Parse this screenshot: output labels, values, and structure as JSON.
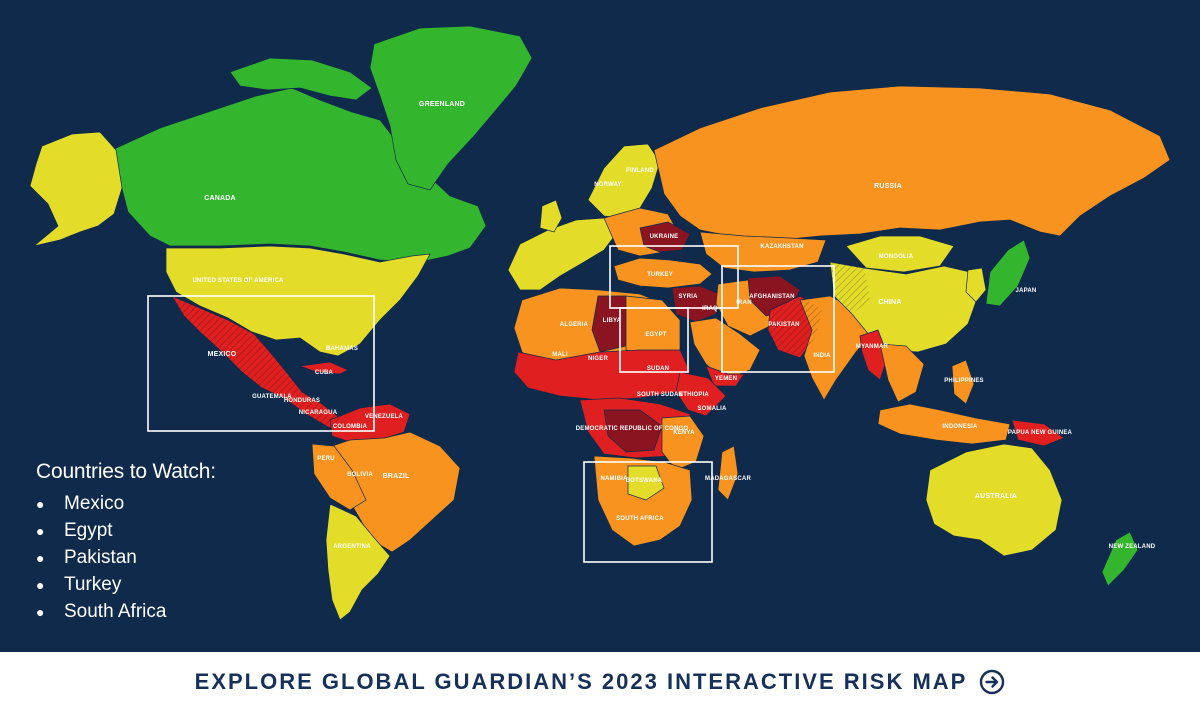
{
  "colors": {
    "ocean": "#0f2a4b",
    "low_risk": "#33b52e",
    "moderate_risk": "#e3dd2a",
    "elevated_risk": "#f7931e",
    "high_risk": "#e02020",
    "extreme_risk": "#8a1420",
    "box_outline": "#ffffff",
    "footer_bg": "#ffffff",
    "footer_text": "#16305a"
  },
  "map": {
    "country_labels": [
      "GREENLAND",
      "CANADA",
      "UNITED STATES OF AMERICA",
      "RUSSIA",
      "KAZAKHSTAN",
      "MONGOLIA",
      "CHINA",
      "JAPAN",
      "INDIA",
      "PAKISTAN",
      "AFGHANISTAN",
      "TURKEY",
      "SYRIA",
      "IRAQ",
      "EGYPT",
      "ALGERIA",
      "LIBYA",
      "MALI",
      "NIGER",
      "SUDAN",
      "SOUTH SUDAN",
      "ETHIOPIA",
      "SOMALIA",
      "KENYA",
      "DEMOCRATIC REPUBLIC OF CONGO",
      "NAMIBIA",
      "BOTSWANA",
      "SOUTH AFRICA",
      "MADAGASCAR",
      "MEXICO",
      "CUBA",
      "GUATEMALA",
      "HONDURAS",
      "NICARAGUA",
      "BRAZIL",
      "BOLIVIA",
      "ARGENTINA",
      "PERU",
      "COLOMBIA",
      "VENEZUELA",
      "AUSTRALIA",
      "NEW ZEALAND",
      "INDONESIA",
      "PAPUA NEW GUINEA",
      "PHILIPPINES",
      "MYANMAR",
      "BAHAMAS",
      "YEMEN",
      "IRAN",
      "FINLAND",
      "NORWAY",
      "UKRAINE"
    ]
  },
  "watch": {
    "title": "Countries to Watch:",
    "countries": [
      "Mexico",
      "Egypt",
      "Pakistan",
      "Turkey",
      "South Africa"
    ]
  },
  "footer": {
    "cta": "EXPLORE GLOBAL GUARDIAN’S 2023 INTERACTIVE RISK MAP",
    "arrow_icon": "arrow-right-circle-icon"
  }
}
